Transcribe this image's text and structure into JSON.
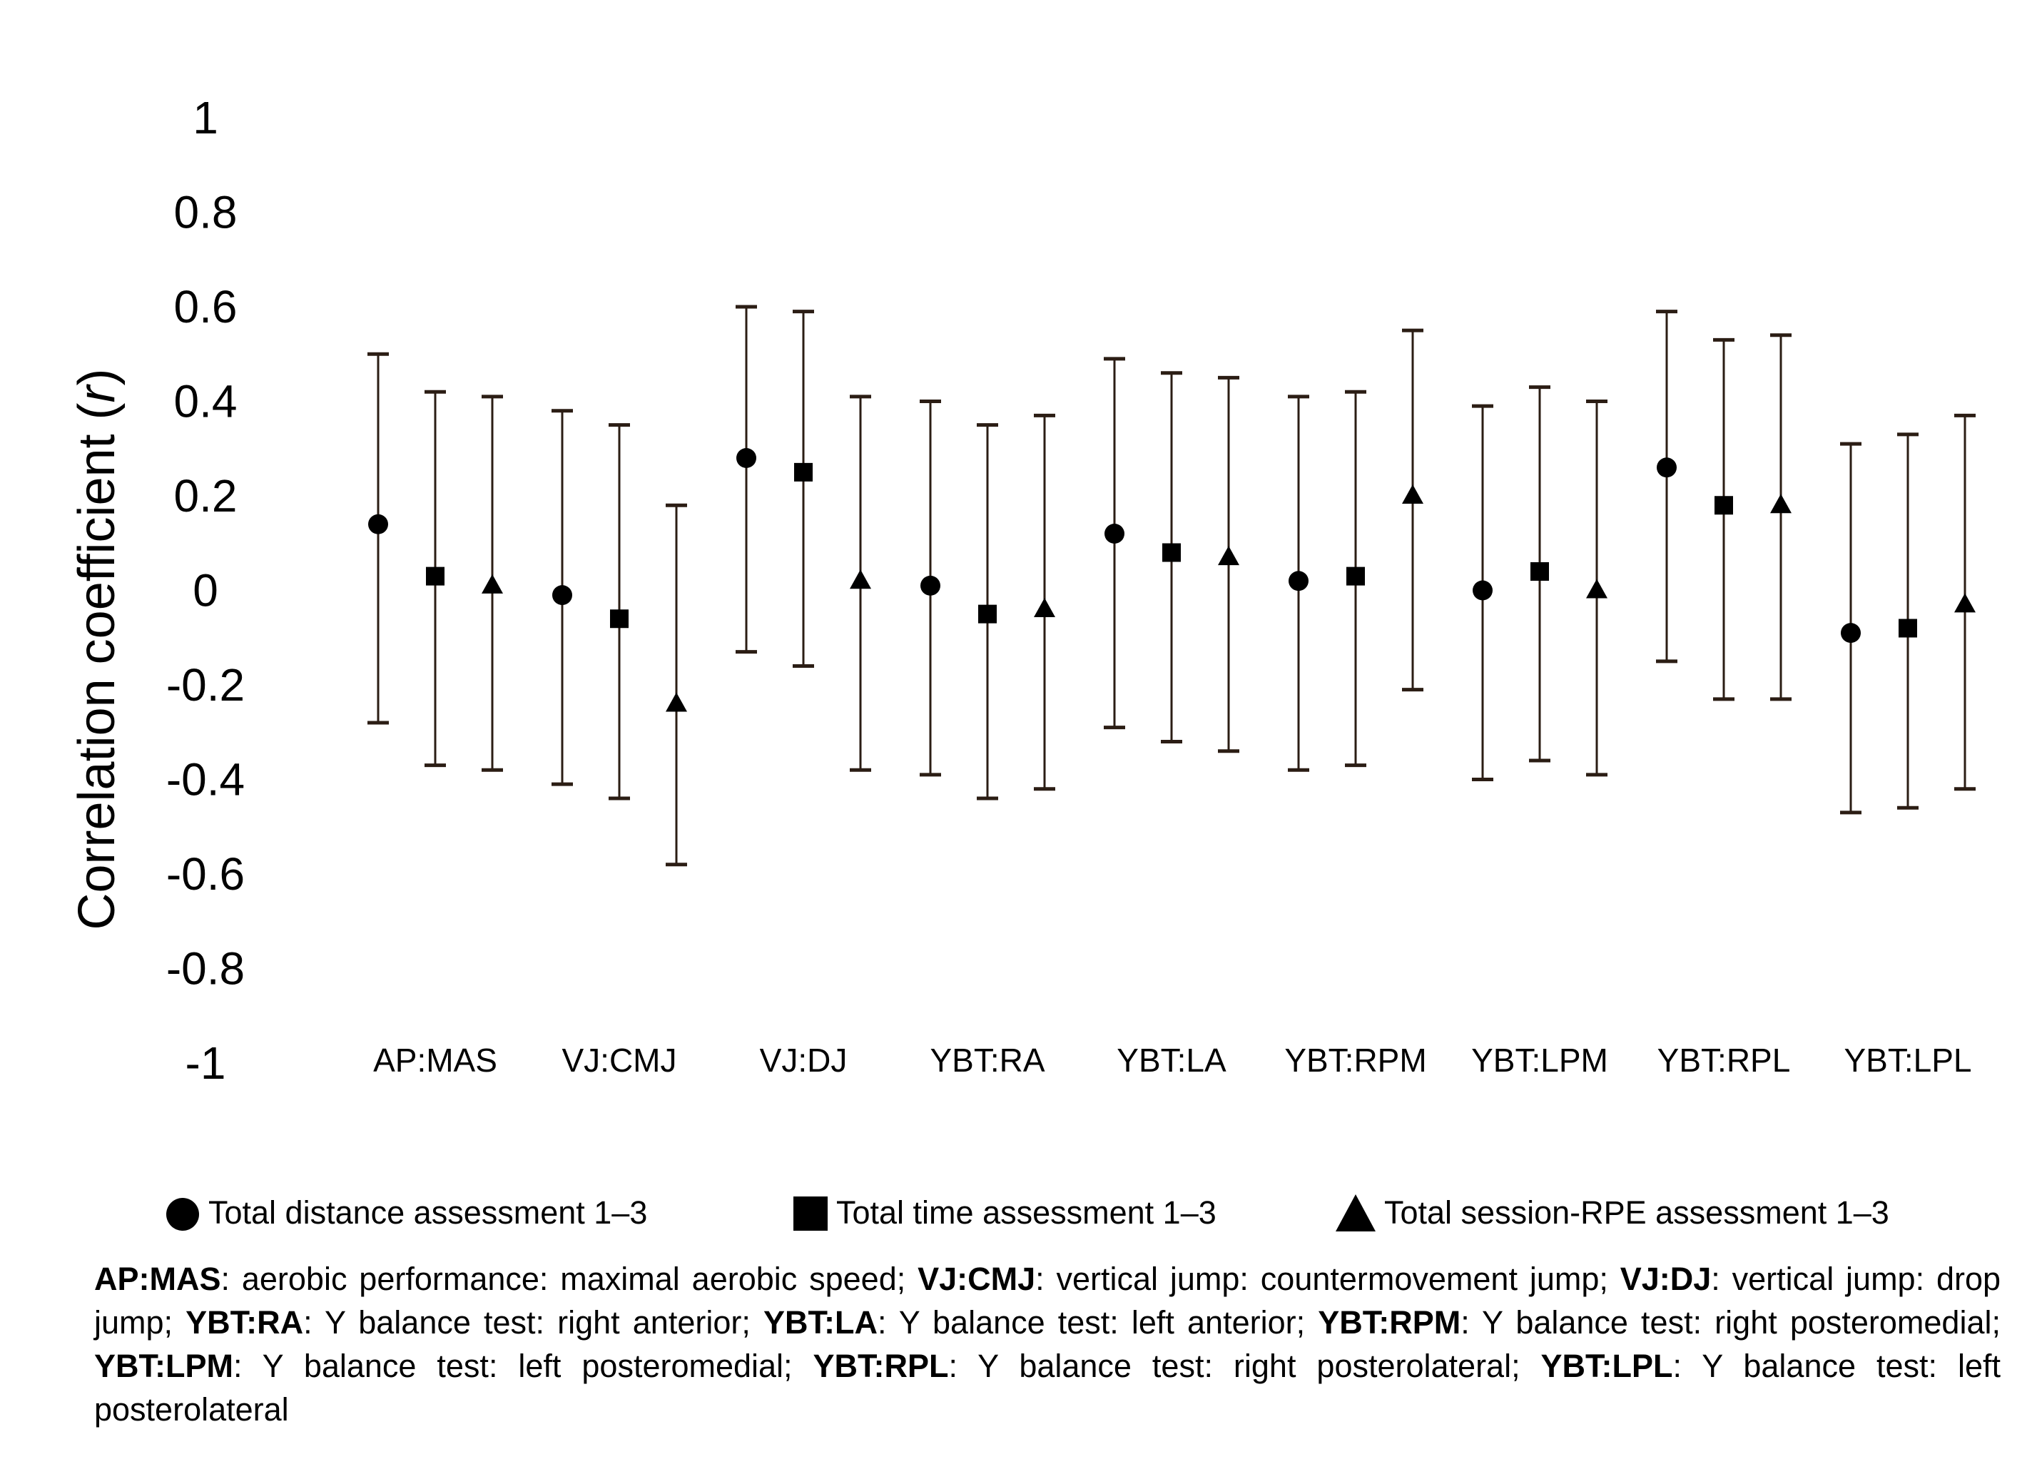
{
  "chart_data": {
    "type": "scatter",
    "ylabel": "Correlation coefficient (r)",
    "ylabel_italic_part": "r",
    "ylim": [
      -1,
      1
    ],
    "yticks": [
      "1",
      "0.8",
      "0.6",
      "0.4",
      "0.2",
      "0",
      "-0.2",
      "-0.4",
      "-0.6",
      "-0.8",
      "-1"
    ],
    "ytick_values": [
      1,
      0.8,
      0.6,
      0.4,
      0.2,
      0,
      -0.2,
      -0.4,
      -0.6,
      -0.8,
      -1
    ],
    "grid": false,
    "legend_position": "bottom",
    "categories": [
      "AP:MAS",
      "VJ:CMJ",
      "VJ:DJ",
      "YBT:RA",
      "YBT:LA",
      "YBT:RPM",
      "YBT:LPM",
      "YBT:RPL",
      "YBT:LPL"
    ],
    "series": [
      {
        "name": "Total distance assessment 1–3",
        "marker": "circle",
        "values": [
          0.14,
          -0.01,
          0.28,
          0.01,
          0.12,
          0.02,
          0.0,
          0.26,
          -0.09
        ],
        "lower": [
          -0.28,
          -0.41,
          -0.13,
          -0.39,
          -0.29,
          -0.38,
          -0.4,
          -0.15,
          -0.47
        ],
        "upper": [
          0.5,
          0.38,
          0.6,
          0.4,
          0.49,
          0.41,
          0.39,
          0.59,
          0.31
        ]
      },
      {
        "name": "Total time assessment 1–3",
        "marker": "square",
        "values": [
          0.03,
          -0.06,
          0.25,
          -0.05,
          0.08,
          0.03,
          0.04,
          0.18,
          -0.08
        ],
        "lower": [
          -0.37,
          -0.44,
          -0.16,
          -0.44,
          -0.32,
          -0.37,
          -0.36,
          -0.23,
          -0.46
        ],
        "upper": [
          0.42,
          0.35,
          0.59,
          0.35,
          0.46,
          0.42,
          0.43,
          0.53,
          0.33
        ]
      },
      {
        "name": "Total session-RPE assessment 1–3",
        "marker": "triangle",
        "values": [
          0.01,
          -0.24,
          0.02,
          -0.04,
          0.07,
          0.2,
          0.0,
          0.18,
          -0.03
        ],
        "lower": [
          -0.38,
          -0.58,
          -0.38,
          -0.42,
          -0.34,
          -0.21,
          -0.39,
          -0.23,
          -0.42
        ],
        "upper": [
          0.41,
          0.18,
          0.41,
          0.37,
          0.45,
          0.55,
          0.4,
          0.54,
          0.37
        ]
      }
    ]
  },
  "footnote": [
    {
      "abbr": "AP:MAS",
      "text": ": aerobic performance: maximal aerobic speed; "
    },
    {
      "abbr": "VJ:CMJ",
      "text": ": vertical jump: countermovement jump; "
    },
    {
      "abbr": "VJ:DJ",
      "text": ": vertical jump: drop jump; "
    },
    {
      "abbr": "YBT:RA",
      "text": ": Y balance test: right anterior; "
    },
    {
      "abbr": "YBT:LA",
      "text": ": Y balance test: left anterior; "
    },
    {
      "abbr": "YBT:RPM",
      "text": ": Y balance test: right posteromedial; "
    },
    {
      "abbr": "YBT:LPM",
      "text": ": Y balance test: left posteromedial; "
    },
    {
      "abbr": "YBT:RPL",
      "text": ": Y balance test: right posterolateral; "
    },
    {
      "abbr": "YBT:LPL",
      "text": ": Y balance test: left posterolateral"
    }
  ]
}
